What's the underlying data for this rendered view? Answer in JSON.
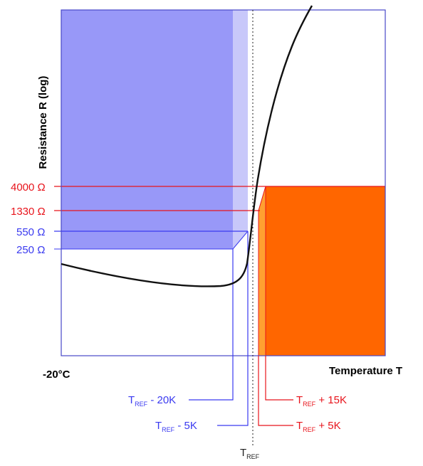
{
  "axes": {
    "y_label": "Resistance R (log)",
    "x_label": "Temperature T",
    "x_start_label": "-20°C"
  },
  "resistance_labels": {
    "r4000": "4000 Ω",
    "r1330": "1330 Ω",
    "r550": "550 Ω",
    "r250": "250 Ω"
  },
  "temperature_labels": {
    "minus20": {
      "main": "T",
      "sub": "REF",
      "suffix": " - 20K"
    },
    "minus5": {
      "main": "T",
      "sub": "REF",
      "suffix": " - 5K"
    },
    "plus15": {
      "main": "T",
      "sub": "REF",
      "suffix": " + 15K"
    },
    "plus5": {
      "main": "T",
      "sub": "REF",
      "suffix": " + 5K"
    },
    "ref": {
      "main": "T",
      "sub": "REF",
      "suffix": ""
    }
  },
  "colors": {
    "blue_region": "#9898f8",
    "light_blue_region": "#c8c8fa",
    "orange_region": "#ff6600",
    "light_orange_region": "#ffa030",
    "red_lines": "#e8141c",
    "blue_lines": "#3a3af0",
    "frame": "#4848c8",
    "curve": "#111111"
  }
}
